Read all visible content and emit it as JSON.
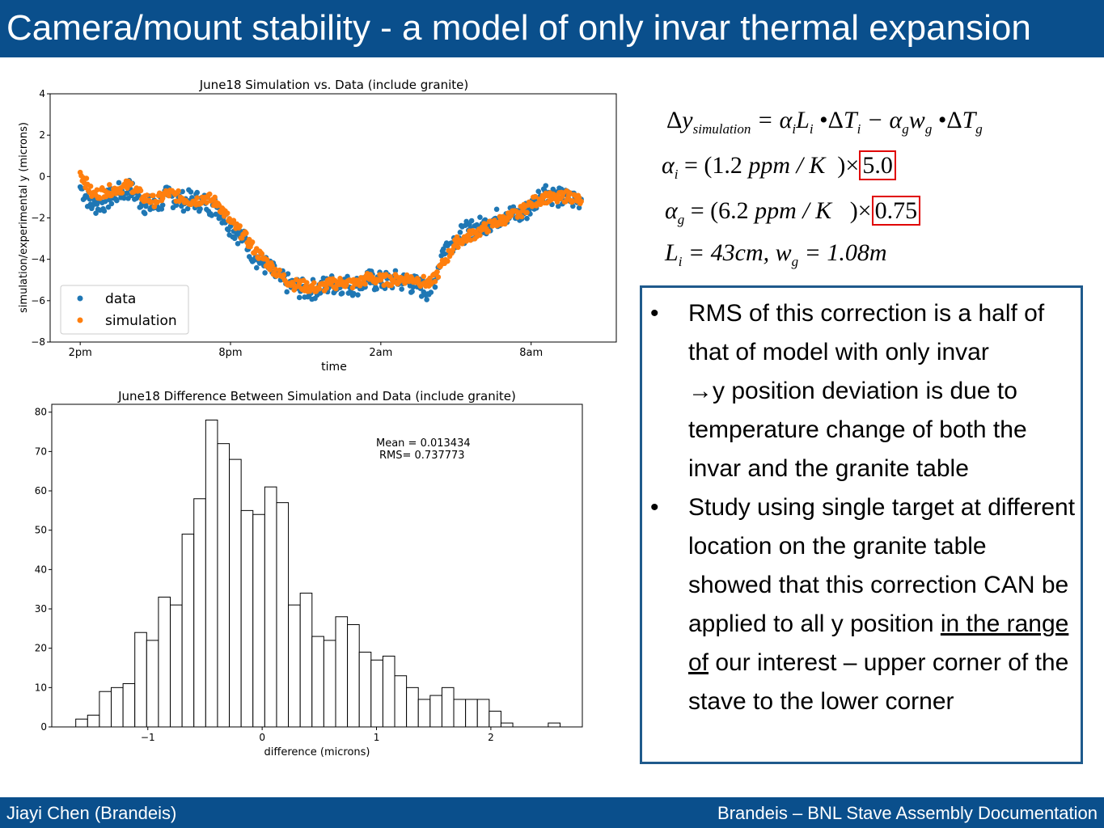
{
  "slide": {
    "title": "Camera/mount stability - a model of only invar thermal expansion",
    "footer_left": "Jiayi Chen (Brandeis)",
    "footer_right": "Brandeis – BNL Stave Assembly Documentation",
    "accent_color": "#0a4f8c",
    "highlight_color": "#e00000"
  },
  "equations": {
    "line1": {
      "lhs": "Δy",
      "lhs_sub": "simulation",
      "rhs": "= αᵢLᵢ •ΔTᵢ − αᵍwᵍ •ΔTᵍ"
    },
    "line2": {
      "lhs": "α",
      "lhs_sub": "i",
      "rhs": "= (1.2 ppm / K  )×",
      "boxed": "5.0"
    },
    "line3": {
      "lhs": "α",
      "lhs_sub": "g",
      "rhs": "= (6.2 ppm / K  )×",
      "boxed": "0.75"
    },
    "line4": {
      "text1": "L",
      "sub1": "i",
      "text2": " = 43cm, w",
      "sub2": "g",
      "text3": " = 1.08m"
    }
  },
  "bullets": [
    {
      "marker": "•",
      "text": "RMS of this correction is a half of that of model with only invar",
      "arrow": "→",
      "text2": "y position deviation is due to temperature change of both the invar and the granite table"
    },
    {
      "marker": "•",
      "text_before": "Study using single target at different location on the granite table showed that this correction CAN be applied to all y position ",
      "underlined": "in the range of",
      "text_after": " our interest – upper corner of the stave to the lower corner"
    }
  ],
  "chart_data": [
    {
      "type": "scatter",
      "title": "June18 Simulation vs. Data (include granite)",
      "xlabel": "time",
      "ylabel": "simulation/experimental y (microns)",
      "x_tick_labels": [
        "2pm",
        "8pm",
        "2am",
        "8am"
      ],
      "x_hours": [
        14,
        20,
        26,
        32
      ],
      "xlim": [
        12.8,
        35.4
      ],
      "ylim": [
        -8,
        4
      ],
      "y_ticks": [
        -8,
        -6,
        -4,
        -2,
        0,
        2,
        4
      ],
      "legend_position": "lower-left",
      "grid": false,
      "series": [
        {
          "name": "data",
          "color": "#1f77b4",
          "x": [
            14.0,
            14.5,
            15.0,
            15.5,
            16.0,
            16.5,
            17.0,
            17.5,
            18.0,
            18.5,
            19.0,
            19.5,
            20.0,
            20.5,
            21.0,
            21.5,
            22.0,
            22.5,
            23.0,
            23.5,
            24.0,
            24.5,
            25.0,
            25.5,
            26.0,
            26.5,
            27.0,
            27.5,
            28.0,
            28.5,
            29.0,
            29.5,
            30.0,
            30.5,
            31.0,
            31.5,
            32.0,
            32.5,
            33.0,
            33.5,
            34.0
          ],
          "y": [
            -0.5,
            -1.4,
            -1.2,
            -0.8,
            -0.6,
            -1.3,
            -1.5,
            -0.9,
            -1.2,
            -1.1,
            -1.3,
            -1.5,
            -2.4,
            -3.0,
            -3.9,
            -4.4,
            -5.0,
            -5.3,
            -5.5,
            -5.4,
            -5.2,
            -5.2,
            -5.3,
            -5.0,
            -5.1,
            -5.0,
            -5.1,
            -5.3,
            -5.6,
            -3.5,
            -3.0,
            -2.6,
            -2.4,
            -2.1,
            -1.8,
            -1.9,
            -1.5,
            -0.6,
            -1.0,
            -1.1,
            -1.1
          ]
        },
        {
          "name": "simulation",
          "color": "#ff7f0e",
          "x": [
            14.0,
            14.5,
            15.0,
            15.5,
            16.0,
            16.5,
            17.0,
            17.5,
            18.0,
            18.5,
            19.0,
            19.5,
            20.0,
            20.5,
            21.0,
            21.5,
            22.0,
            22.5,
            23.0,
            23.5,
            24.0,
            24.5,
            25.0,
            25.5,
            26.0,
            26.5,
            27.0,
            27.5,
            28.0,
            28.5,
            29.0,
            29.5,
            30.0,
            30.5,
            31.0,
            31.5,
            32.0,
            32.5,
            33.0,
            33.5,
            34.0
          ],
          "y": [
            0.2,
            -0.9,
            -0.7,
            -0.6,
            -0.4,
            -1.0,
            -1.2,
            -0.8,
            -1.0,
            -1.2,
            -1.0,
            -1.3,
            -2.2,
            -2.8,
            -3.6,
            -4.2,
            -4.8,
            -5.2,
            -5.3,
            -5.4,
            -5.2,
            -5.1,
            -5.2,
            -4.9,
            -5.0,
            -5.0,
            -4.9,
            -5.0,
            -5.2,
            -4.2,
            -3.2,
            -2.9,
            -2.6,
            -2.3,
            -2.0,
            -1.8,
            -1.3,
            -1.0,
            -1.1,
            -0.9,
            -1.2
          ]
        }
      ]
    },
    {
      "type": "bar",
      "title": "June18 Difference Between Simulation and Data (include granite)",
      "xlabel": "difference (microns)",
      "ylabel": "",
      "xlim": [
        -1.84,
        2.8
      ],
      "ylim": [
        0,
        82
      ],
      "x_ticks": [
        -1,
        0,
        1,
        2
      ],
      "y_ticks": [
        0,
        10,
        20,
        30,
        40,
        50,
        60,
        70,
        80
      ],
      "bin_width": 0.1033,
      "bin_start": -1.63,
      "values": [
        2,
        3,
        9,
        10,
        11,
        24,
        22,
        33,
        31,
        49,
        58,
        78,
        72,
        68,
        55,
        54,
        61,
        57,
        31,
        34,
        23,
        22,
        28,
        26,
        19,
        17,
        18,
        13,
        10,
        7,
        8,
        10,
        7,
        7,
        7,
        4,
        1,
        0,
        0,
        0,
        1
      ],
      "annotation": [
        "Mean = 0.013434",
        "RMS= 0.737773"
      ]
    }
  ]
}
